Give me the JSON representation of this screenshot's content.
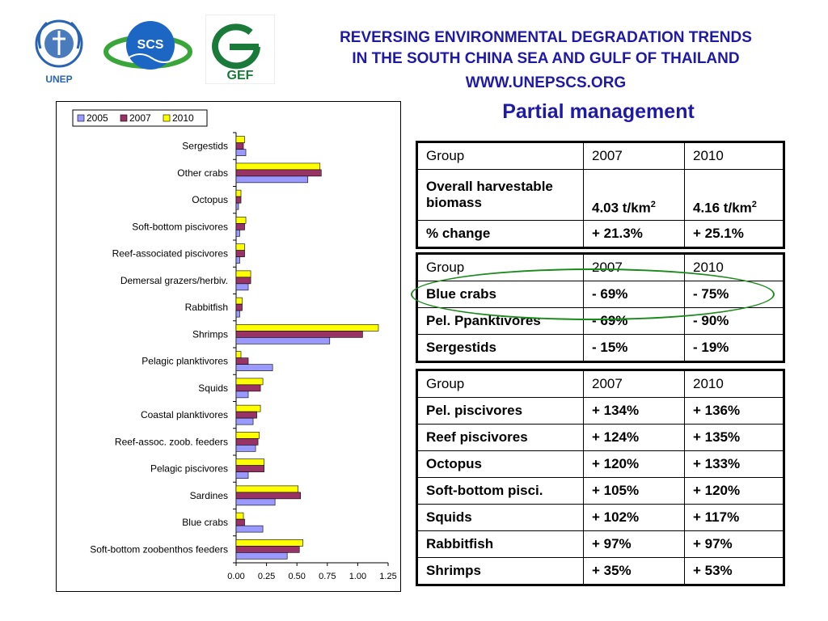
{
  "header": {
    "line1": "REVERSING ENVIRONMENTAL DEGRADATION TRENDS",
    "line2": "IN THE SOUTH CHINA SEA AND GULF OF THAILAND",
    "line3": "WWW.UNEPSCS.ORG",
    "logos": {
      "unep_text": "UNEP",
      "scs_text": "SCS",
      "gef_text": "GEF"
    }
  },
  "subtitle": "Partial management",
  "colors": {
    "s2005": "#9999ff",
    "s2007": "#993366",
    "s2010": "#ffff00",
    "title": "#1f1aa6",
    "ellipse": "#1a8a1a"
  },
  "chart_data": {
    "type": "bar",
    "orientation": "horizontal",
    "categories": [
      "Sergestids",
      "Other crabs",
      "Octopus",
      "Soft-bottom piscivores",
      "Reef-associated piscivores",
      "Demersal grazers/herbiv.",
      "Rabbitfish",
      "Shrimps",
      "Pelagic planktivores",
      "Squids",
      "Coastal planktivores",
      "Reef-assoc. zoob. feeders",
      "Pelagic piscivores",
      "Sardines",
      "Blue crabs",
      "Soft-bottom zoobenthos feeders"
    ],
    "series": [
      {
        "name": "2005",
        "color": "#9999ff",
        "values": [
          0.08,
          0.59,
          0.02,
          0.03,
          0.03,
          0.1,
          0.03,
          0.77,
          0.3,
          0.1,
          0.14,
          0.16,
          0.1,
          0.32,
          0.22,
          0.42
        ]
      },
      {
        "name": "2007",
        "color": "#993366",
        "values": [
          0.06,
          0.7,
          0.04,
          0.07,
          0.07,
          0.12,
          0.05,
          1.04,
          0.1,
          0.2,
          0.17,
          0.18,
          0.23,
          0.53,
          0.07,
          0.52
        ]
      },
      {
        "name": "2010",
        "color": "#ffff00",
        "values": [
          0.07,
          0.69,
          0.04,
          0.08,
          0.07,
          0.12,
          0.05,
          1.17,
          0.04,
          0.22,
          0.2,
          0.19,
          0.23,
          0.51,
          0.06,
          0.55
        ]
      }
    ],
    "xticks": [
      "0.00",
      "0.25",
      "0.50",
      "0.75",
      "1.00",
      "1.25"
    ],
    "xlim": [
      0,
      1.25
    ],
    "legend": "top-left",
    "grid": false
  },
  "tables": [
    {
      "rows": [
        [
          "Group",
          "2007",
          "2010"
        ],
        [
          "Overall harvestable biomass",
          "4.03 t/km",
          "4.16 t/km"
        ],
        [
          "% change",
          "+ 21.3%",
          "+ 25.1%"
        ]
      ],
      "unit_sup": "2"
    },
    {
      "rows": [
        [
          "Group",
          "2007",
          "2010"
        ],
        [
          "Blue crabs",
          "- 69%",
          "- 75%"
        ],
        [
          "Pel. Ppanktivores",
          "- 69%",
          "- 90%"
        ],
        [
          "Sergestids",
          "- 15%",
          "- 19%"
        ]
      ]
    },
    {
      "rows": [
        [
          "Group",
          "2007",
          "2010"
        ],
        [
          "Pel. piscivores",
          "+ 134%",
          "+ 136%"
        ],
        [
          "Reef piscivores",
          "+ 124%",
          "+ 135%"
        ],
        [
          "Octopus",
          "+ 120%",
          "+ 133%"
        ],
        [
          "Soft-bottom pisci.",
          "+ 105%",
          "+ 120%"
        ],
        [
          "Squids",
          "+ 102%",
          "+ 117%"
        ],
        [
          "Rabbitfish",
          "+ 97%",
          "+ 97%"
        ],
        [
          "Shrimps",
          "+ 35%",
          "+ 53%"
        ]
      ]
    }
  ]
}
